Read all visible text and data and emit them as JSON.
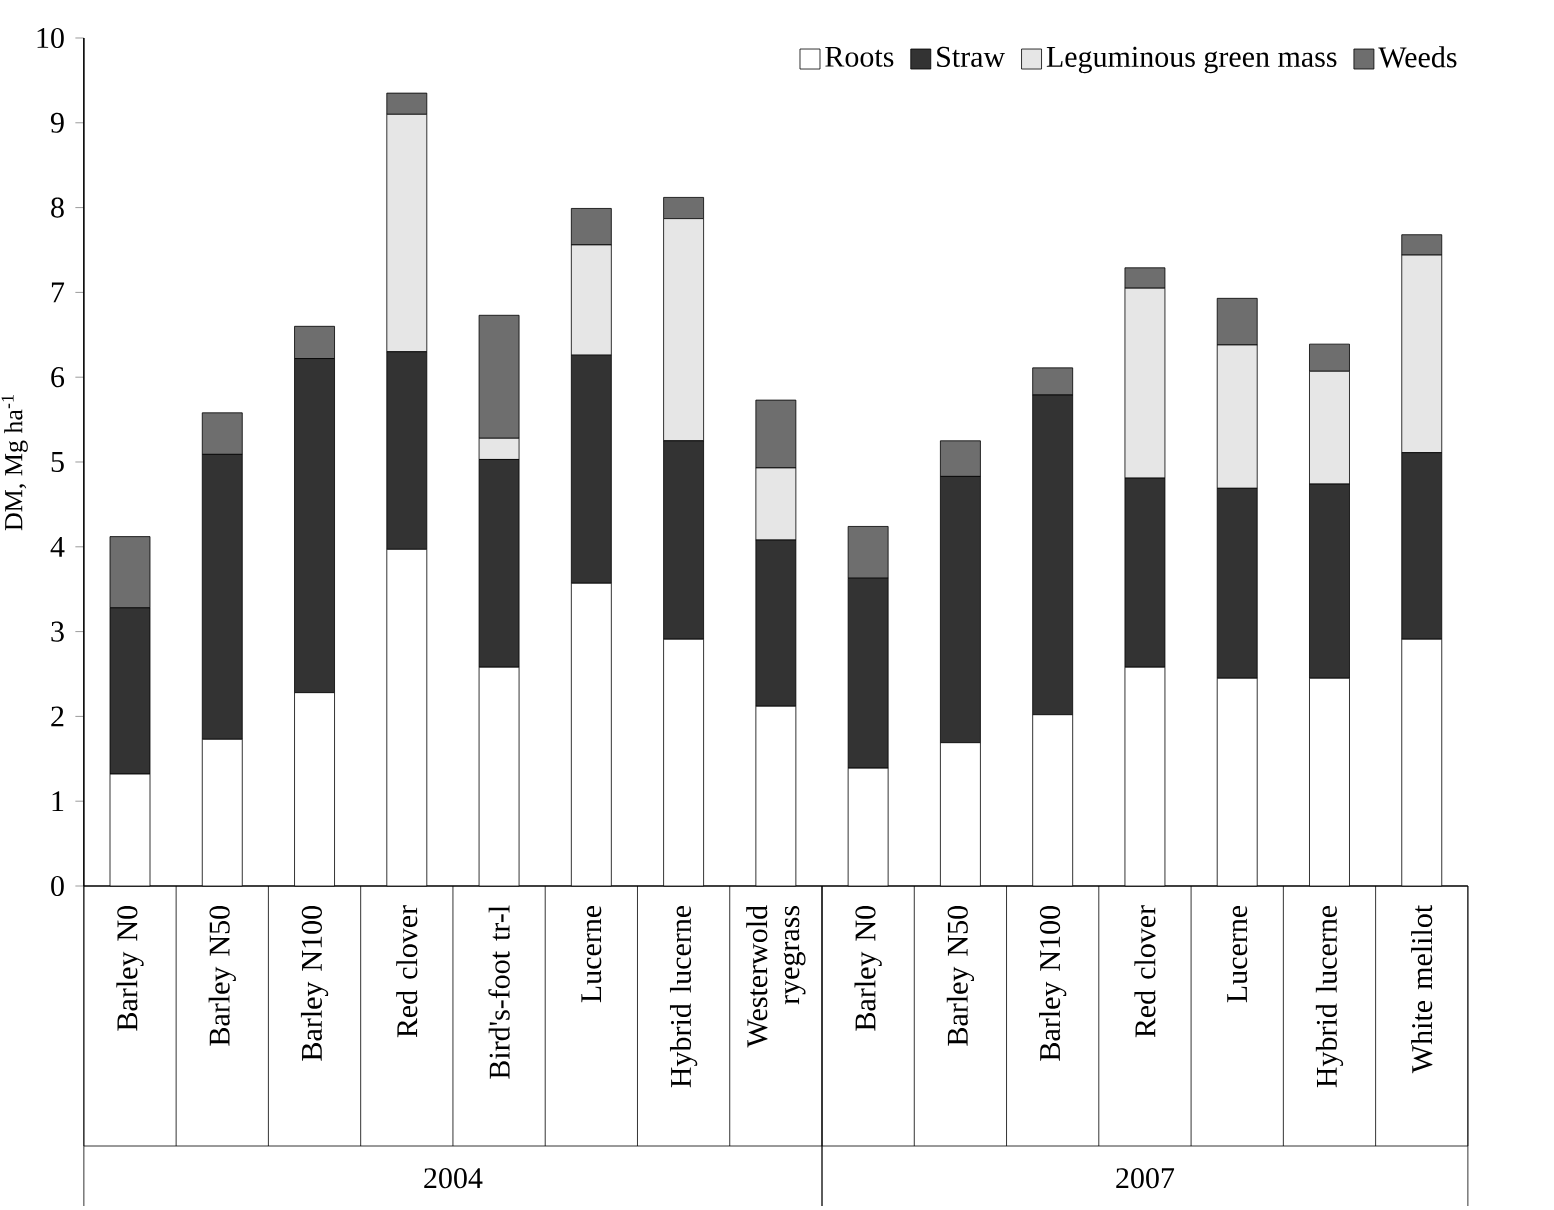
{
  "chart_data": {
    "type": "bar",
    "stacked": true,
    "ylabel": "DM, Mg ha$^{-1}$",
    "categories": [
      "Barley N0",
      "Barley N50",
      "Barley N100",
      "Red clover",
      "Bird's-foot tr-l",
      "Lucerne",
      "Hybrid lucerne",
      "Westerwold ryegrass",
      "Barley N0",
      "Barley N50",
      "Barley N100",
      "Red clover",
      "Lucerne",
      "Hybrid lucerne",
      "White melilot"
    ],
    "series": [
      {
        "name": "Roots",
        "color": "#ffffff",
        "values": [
          1.32,
          1.73,
          2.28,
          3.97,
          2.58,
          3.57,
          2.91,
          2.12,
          1.39,
          1.69,
          2.02,
          2.58,
          2.45,
          2.45,
          2.91
        ]
      },
      {
        "name": "Straw",
        "color": "#333333",
        "values": [
          1.96,
          3.36,
          3.94,
          2.33,
          2.45,
          2.69,
          2.34,
          1.96,
          2.24,
          3.14,
          3.77,
          2.23,
          2.24,
          2.29,
          2.2
        ]
      },
      {
        "name": "Leguminous green mass",
        "color": "#e6e6e6",
        "values": [
          0,
          0,
          0,
          2.8,
          0.25,
          1.3,
          2.62,
          0.85,
          0,
          0,
          0,
          2.24,
          1.69,
          1.33,
          2.33
        ]
      },
      {
        "name": "Weeds",
        "color": "#6e6e6e",
        "values": [
          0.84,
          0.49,
          0.38,
          0.25,
          1.45,
          0.43,
          0.25,
          0.8,
          0.61,
          0.42,
          0.32,
          0.24,
          0.55,
          0.32,
          0.24
        ]
      }
    ],
    "ylim": [
      0,
      10
    ],
    "yticks": [
      0,
      1,
      2,
      3,
      4,
      5,
      6,
      7,
      8,
      9,
      10
    ],
    "legend": "top right",
    "grid": false,
    "annotations": [
      "2004",
      "2007"
    ]
  }
}
